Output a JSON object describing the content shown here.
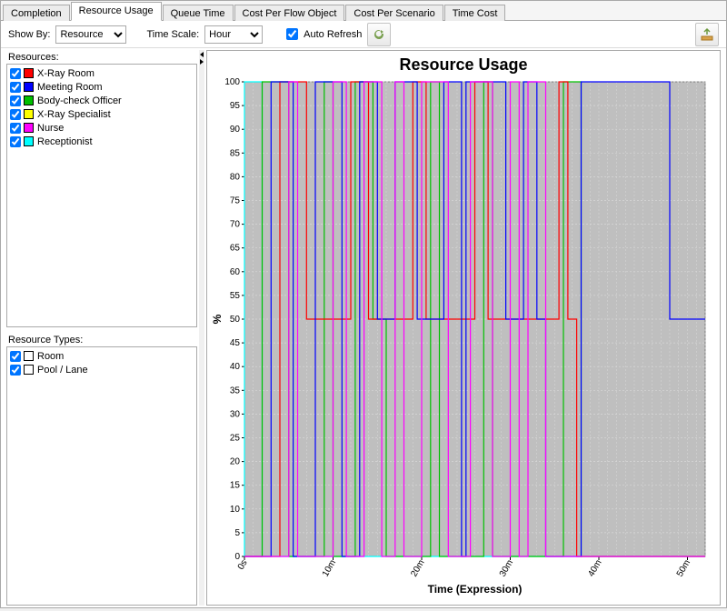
{
  "tabs": [
    "Completion",
    "Resource Usage",
    "Queue Time",
    "Cost Per Flow Object",
    "Cost Per Scenario",
    "Time Cost"
  ],
  "activeTab": 1,
  "toolbar": {
    "showByLabel": "Show By:",
    "showByValue": "Resource",
    "timeScaleLabel": "Time Scale:",
    "timeScaleValue": "Hour",
    "autoRefreshLabel": "Auto Refresh",
    "autoRefreshChecked": true
  },
  "resourcesLabel": "Resources:",
  "resources": [
    {
      "label": "X-Ray Room",
      "color": "#ff0000",
      "checked": true
    },
    {
      "label": "Meeting Room",
      "color": "#0000ff",
      "checked": true
    },
    {
      "label": "Body-check Officer",
      "color": "#00c000",
      "checked": true
    },
    {
      "label": "X-Ray Specialist",
      "color": "#ffff00",
      "checked": true
    },
    {
      "label": "Nurse",
      "color": "#ff00ff",
      "checked": true
    },
    {
      "label": "Receptionist",
      "color": "#00ffff",
      "checked": true
    }
  ],
  "resourceTypesLabel": "Resource Types:",
  "resourceTypes": [
    {
      "label": "Room",
      "color": "#ffffff",
      "checked": true
    },
    {
      "label": "Pool / Lane",
      "color": "#ffffff",
      "checked": true
    }
  ],
  "chart": {
    "title": "Resource Usage",
    "ylabel": "%",
    "xlabel": "Time (Expression)",
    "ylim": [
      0,
      100
    ],
    "ytick_step": 5,
    "xlim": [
      0,
      52
    ],
    "xticks": [
      0,
      10,
      20,
      30,
      40,
      50
    ],
    "xticklabels": [
      "0s",
      "10m",
      "20m",
      "30m",
      "40m",
      "50m"
    ],
    "plot_bg": "#bfbfbf",
    "grid_color": "#d8d8d8",
    "series_colors": {
      "red": "#ff0000",
      "blue": "#0000ff",
      "green": "#00c000",
      "magenta": "#ff00ff",
      "cyan": "#00ffff"
    },
    "lines": [
      {
        "c": "cyan",
        "pts": [
          [
            0,
            0
          ],
          [
            0,
            100
          ],
          [
            2,
            100
          ],
          [
            2,
            0
          ],
          [
            52,
            0
          ]
        ]
      },
      {
        "c": "green",
        "pts": [
          [
            0,
            0
          ],
          [
            2,
            0
          ],
          [
            2,
            100
          ],
          [
            5,
            100
          ],
          [
            5,
            0
          ],
          [
            9,
            0
          ],
          [
            9,
            100
          ],
          [
            10,
            100
          ],
          [
            10,
            0
          ],
          [
            12.5,
            0
          ],
          [
            12.5,
            100
          ],
          [
            14.5,
            100
          ],
          [
            14.5,
            50
          ],
          [
            16,
            50
          ],
          [
            16,
            0
          ],
          [
            21,
            0
          ],
          [
            21,
            100
          ],
          [
            22,
            100
          ],
          [
            22,
            0
          ],
          [
            27,
            0
          ],
          [
            27,
            100
          ],
          [
            28,
            100
          ],
          [
            28,
            0
          ],
          [
            36,
            0
          ],
          [
            36,
            100
          ],
          [
            38,
            100
          ],
          [
            38,
            0
          ],
          [
            52,
            0
          ]
        ]
      },
      {
        "c": "red",
        "pts": [
          [
            0,
            0
          ],
          [
            4,
            0
          ],
          [
            4,
            100
          ],
          [
            7,
            100
          ],
          [
            7,
            50
          ],
          [
            12,
            50
          ],
          [
            12,
            100
          ],
          [
            14,
            100
          ],
          [
            14,
            50
          ],
          [
            19,
            50
          ],
          [
            19,
            100
          ],
          [
            20.5,
            100
          ],
          [
            20.5,
            50
          ],
          [
            26,
            50
          ],
          [
            26,
            100
          ],
          [
            27.5,
            100
          ],
          [
            27.5,
            50
          ],
          [
            35.5,
            50
          ],
          [
            35.5,
            100
          ],
          [
            36.5,
            100
          ],
          [
            36.5,
            50
          ],
          [
            37.5,
            50
          ],
          [
            37.5,
            0
          ],
          [
            52,
            0
          ]
        ]
      },
      {
        "c": "blue",
        "pts": [
          [
            0,
            0
          ],
          [
            3,
            0
          ],
          [
            3,
            100
          ],
          [
            5.5,
            100
          ],
          [
            5.5,
            0
          ],
          [
            8,
            0
          ],
          [
            8,
            100
          ],
          [
            11,
            100
          ],
          [
            11,
            0
          ],
          [
            13,
            0
          ],
          [
            13,
            100
          ],
          [
            15,
            100
          ],
          [
            15,
            50
          ],
          [
            17,
            50
          ],
          [
            17,
            100
          ],
          [
            19.5,
            100
          ],
          [
            19.5,
            50
          ],
          [
            22.5,
            50
          ],
          [
            22.5,
            100
          ],
          [
            24.5,
            100
          ],
          [
            24.5,
            0
          ],
          [
            25,
            0
          ],
          [
            25,
            100
          ],
          [
            29.5,
            100
          ],
          [
            29.5,
            50
          ],
          [
            31.5,
            50
          ],
          [
            31.5,
            100
          ],
          [
            33,
            100
          ],
          [
            33,
            50
          ],
          [
            34,
            50
          ],
          [
            34,
            0
          ],
          [
            38,
            0
          ],
          [
            38,
            100
          ],
          [
            48,
            100
          ],
          [
            48,
            50
          ],
          [
            52,
            50
          ]
        ]
      },
      {
        "c": "magenta",
        "pts": [
          [
            0,
            0
          ],
          [
            5,
            0
          ],
          [
            5,
            100
          ],
          [
            6,
            100
          ],
          [
            6,
            0
          ],
          [
            10,
            0
          ],
          [
            10,
            100
          ],
          [
            11.5,
            100
          ],
          [
            11.5,
            0
          ],
          [
            13.5,
            0
          ],
          [
            13.5,
            100
          ],
          [
            15.5,
            100
          ],
          [
            15.5,
            0
          ],
          [
            17,
            0
          ],
          [
            17,
            100
          ],
          [
            18,
            100
          ],
          [
            18,
            0
          ],
          [
            20,
            0
          ],
          [
            20,
            100
          ],
          [
            23,
            100
          ],
          [
            23,
            0
          ],
          [
            25.5,
            0
          ],
          [
            25.5,
            100
          ],
          [
            28,
            100
          ],
          [
            28,
            0
          ],
          [
            30,
            0
          ],
          [
            30,
            100
          ],
          [
            31,
            100
          ],
          [
            31,
            0
          ],
          [
            32,
            0
          ],
          [
            32,
            100
          ],
          [
            34,
            100
          ],
          [
            34,
            0
          ],
          [
            52,
            0
          ]
        ]
      }
    ]
  }
}
